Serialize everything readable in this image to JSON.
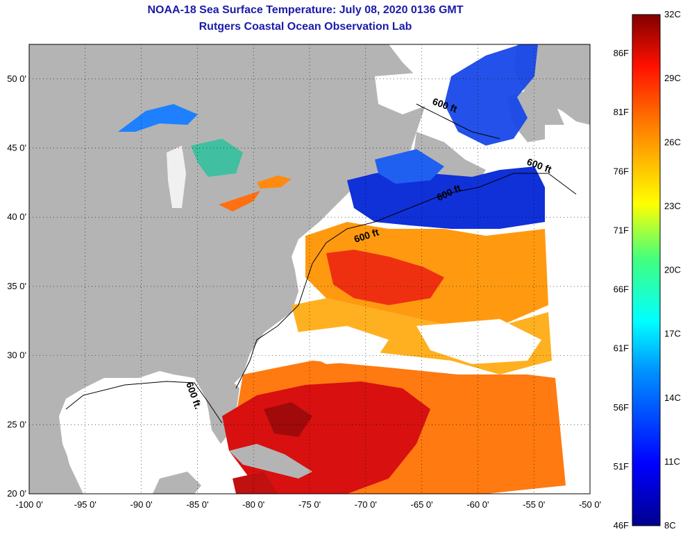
{
  "header": {
    "title": "NOAA-18 Sea Surface Temperature:  July 08, 2020 0136 GMT",
    "subtitle": "Rutgers Coastal Ocean Observation Lab"
  },
  "map": {
    "lon_range": [
      -100,
      -50
    ],
    "lat_range": [
      20,
      52.5
    ],
    "lon_ticks": [
      "-100 0'",
      "-95 0'",
      "-90 0'",
      "-85 0'",
      "-80 0'",
      "-75 0'",
      "-70 0'",
      "-65 0'",
      "-60 0'",
      "-55 0'",
      "-50 0'"
    ],
    "lat_ticks": [
      "20 0'",
      "25 0'",
      "30 0'",
      "35 0'",
      "40 0'",
      "45 0'",
      "50 0'"
    ],
    "contour_labels": [
      "600 ft.",
      "600 ft",
      "600 ft",
      "600 ft",
      "600 ft"
    ],
    "colors": {
      "land": "#b4b4b4",
      "no_data": "#ffffff"
    }
  },
  "colorbar": {
    "celsius_labels": [
      "32C",
      "29C",
      "26C",
      "23C",
      "20C",
      "17C",
      "14C",
      "11C",
      "8C"
    ],
    "fahrenheit_labels": [
      "86F",
      "81F",
      "76F",
      "71F",
      "66F",
      "61F",
      "56F",
      "51F",
      "46F"
    ],
    "range_c": [
      8,
      32
    ]
  }
}
